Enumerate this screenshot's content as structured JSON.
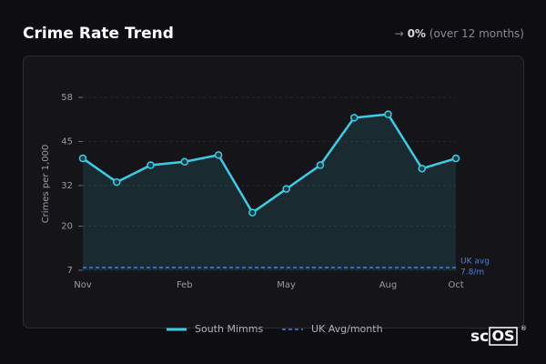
{
  "header": {
    "title": "Crime Rate Trend",
    "change": {
      "arrow": "→",
      "value": "0%",
      "note": "(over 12 months)"
    }
  },
  "chart_data": {
    "type": "line",
    "y_label": "Crimes per 1,000",
    "categories": [
      "Nov",
      null,
      null,
      "Feb",
      null,
      null,
      "May",
      null,
      null,
      "Aug",
      null,
      "Oct"
    ],
    "series": [
      {
        "name": "South Mimms",
        "color": "#3ccde6",
        "values": [
          40,
          33,
          38,
          39,
          41,
          24,
          31,
          38,
          52,
          53,
          37,
          40
        ]
      },
      {
        "name": "UK Avg/month",
        "color": "#4a7fe0",
        "value": 7.8,
        "annotation": "UK avg",
        "value_label": "7.8/m"
      }
    ],
    "ylim": [
      7,
      58
    ],
    "yticks": [
      7,
      20,
      32,
      45,
      58
    ],
    "grid": true
  },
  "brand": {
    "prefix": "sc",
    "box": "OS",
    "mark": "®"
  }
}
